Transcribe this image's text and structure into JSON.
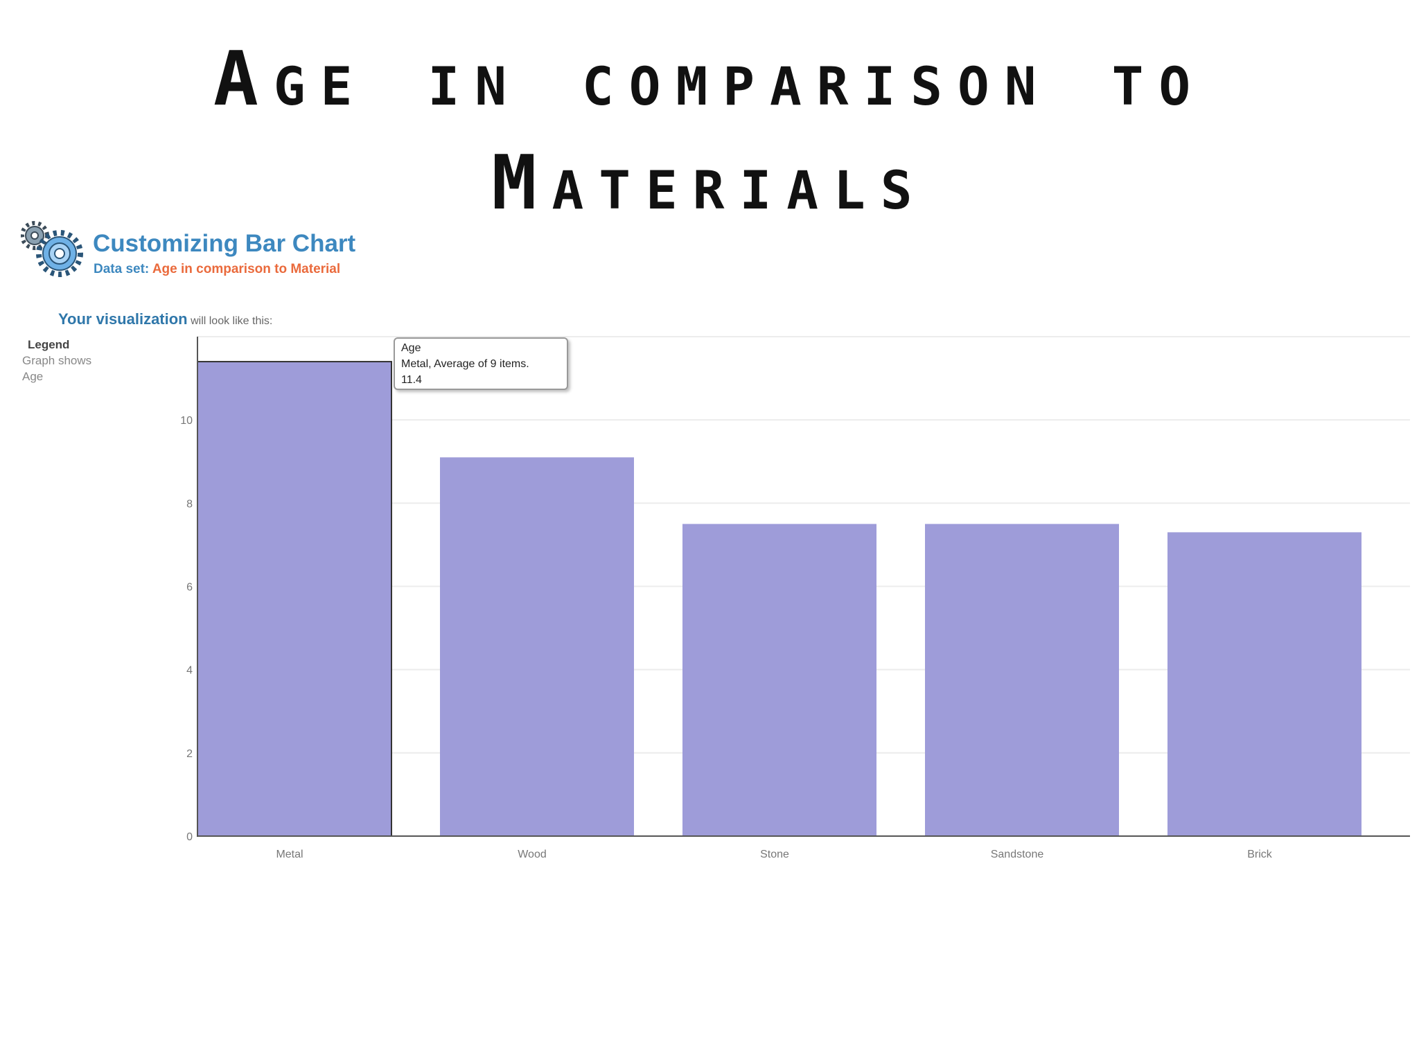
{
  "slide": {
    "title_line1": "Age in comparison to",
    "title_line2": "Materials"
  },
  "header": {
    "heading": "Customizing Bar Chart",
    "dataset_label": "Data set:",
    "dataset_value": "Age in comparison to Material",
    "icon": "gear-icon"
  },
  "visualization": {
    "lead_strong": "Your visualization",
    "lead_rest": "will look like this:"
  },
  "legend": {
    "title": "Legend",
    "line1": "Graph shows",
    "line2": "Age"
  },
  "tooltip": {
    "series": "Age",
    "detail": "Metal, Average of 9 items.",
    "value": "11.4"
  },
  "colors": {
    "bar": "#9e9cd9",
    "highlight_border": "#333333",
    "heading": "#3d88bf",
    "dataset_value": "#ea6a3c"
  },
  "chart_data": {
    "type": "bar",
    "categories": [
      "Metal",
      "Wood",
      "Stone",
      "Sandstone",
      "Brick"
    ],
    "series": [
      {
        "name": "Age",
        "values": [
          11.4,
          9.1,
          7.5,
          7.5,
          7.3
        ]
      }
    ],
    "title": "",
    "xlabel": "",
    "ylabel": "",
    "ylim": [
      0,
      12
    ],
    "yticks": [
      0,
      2,
      4,
      6,
      8,
      10
    ],
    "grid": true,
    "highlighted_category": "Metal"
  }
}
